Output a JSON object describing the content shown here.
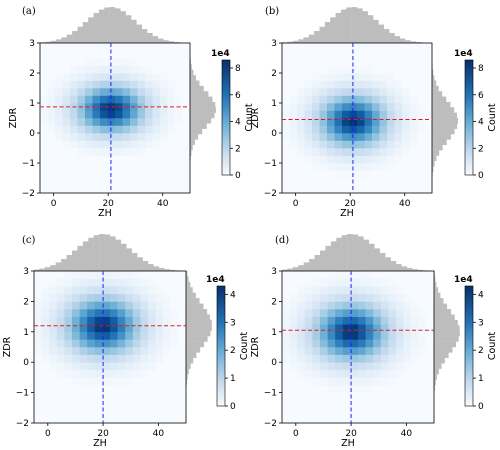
{
  "chart_data": [
    {
      "panel_label": "(a)",
      "type": "heatmap",
      "xlabel": "ZH",
      "ylabel": "ZDR",
      "x_ticks": [
        "0",
        "20",
        "40"
      ],
      "y_ticks": [
        "−2",
        "−1",
        "0",
        "1",
        "2",
        "3"
      ],
      "xlim": [
        -5,
        50
      ],
      "ylim": [
        -2,
        3
      ],
      "peak_x": 21,
      "peak_y": 0.8,
      "spread_x": 8.5,
      "spread_y": 0.55,
      "vline_x": 21,
      "hline_y": 0.87,
      "colorbar": {
        "label": "Count",
        "exponent": "1e4",
        "ticks": [
          "0",
          "2",
          "4",
          "6",
          "8"
        ],
        "max": 8.6
      }
    },
    {
      "panel_label": "(b)",
      "type": "heatmap",
      "xlabel": "ZH",
      "ylabel": "ZDR",
      "x_ticks": [
        "0",
        "20",
        "40"
      ],
      "y_ticks": [
        "−2",
        "−1",
        "0",
        "1",
        "2",
        "3"
      ],
      "xlim": [
        -5,
        50
      ],
      "ylim": [
        -2,
        3
      ],
      "peak_x": 21,
      "peak_y": 0.4,
      "spread_x": 8.5,
      "spread_y": 0.6,
      "vline_x": 21,
      "hline_y": 0.45,
      "colorbar": {
        "label": "Count",
        "exponent": "1e4",
        "ticks": [
          "0",
          "2",
          "4",
          "6",
          "8"
        ],
        "max": 8.6
      }
    },
    {
      "panel_label": "(c)",
      "type": "heatmap",
      "xlabel": "ZH",
      "ylabel": "ZDR",
      "x_ticks": [
        "0",
        "20",
        "40"
      ],
      "y_ticks": [
        "−2",
        "−1",
        "0",
        "1",
        "2",
        "3"
      ],
      "xlim": [
        -5,
        50
      ],
      "ylim": [
        -2,
        3
      ],
      "peak_x": 20,
      "peak_y": 1.2,
      "spread_x": 9,
      "spread_y": 0.65,
      "vline_x": 20,
      "hline_y": 1.2,
      "colorbar": {
        "label": "Count",
        "exponent": "1e4",
        "ticks": [
          "0",
          "1",
          "2",
          "3",
          "4"
        ],
        "max": 4.3
      }
    },
    {
      "panel_label": "(d)",
      "type": "heatmap",
      "xlabel": "ZH",
      "ylabel": "ZDR",
      "x_ticks": [
        "0",
        "20",
        "40"
      ],
      "y_ticks": [
        "−2",
        "−1",
        "0",
        "1",
        "2",
        "3"
      ],
      "xlim": [
        -5,
        50
      ],
      "ylim": [
        -2,
        3
      ],
      "peak_x": 20,
      "peak_y": 1.0,
      "spread_x": 9,
      "spread_y": 0.65,
      "vline_x": 20,
      "hline_y": 1.05,
      "colorbar": {
        "label": "Count",
        "exponent": "1e4",
        "ticks": [
          "0",
          "1",
          "2",
          "3",
          "4"
        ],
        "max": 4.3
      }
    }
  ],
  "colors": {
    "blue_dark": "#08306b",
    "blue_light": "#f7fbff",
    "hist_gray": "#bdbdbd",
    "vline": "#1f1fff",
    "hline": "#e41a1c"
  }
}
